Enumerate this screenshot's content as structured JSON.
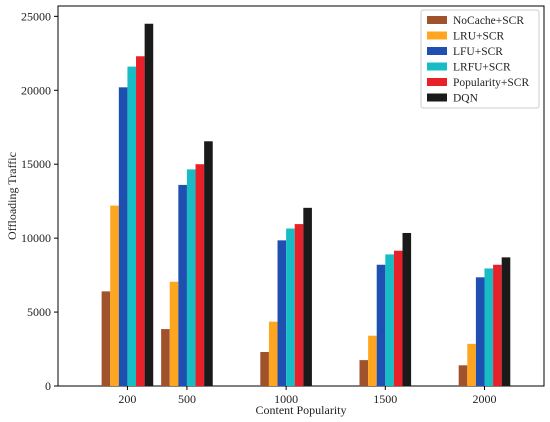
{
  "chart_data": {
    "type": "bar",
    "title": "",
    "xlabel": "Content Popularity",
    "ylabel": "Offloading Traffic",
    "categories": [
      "200",
      "500",
      "1000",
      "1500",
      "2000"
    ],
    "x_positions": [
      200,
      500,
      1000,
      1500,
      2000
    ],
    "xlim": [
      -150,
      2300
    ],
    "ylim": [
      0,
      25700
    ],
    "yticks": [
      0,
      5000,
      10000,
      15000,
      20000,
      25000
    ],
    "ytick_labels": [
      "0",
      "5000",
      "10000",
      "15000",
      "20000",
      "25000"
    ],
    "grid": false,
    "legend_position": "top-right",
    "series": [
      {
        "name": "NoCache+SCR",
        "color": "#a0522d",
        "values": [
          6400,
          3850,
          2300,
          1750,
          1400
        ]
      },
      {
        "name": "LRU+SCR",
        "color": "#ffa620",
        "values": [
          12200,
          7050,
          4350,
          3400,
          2850
        ]
      },
      {
        "name": "LFU+SCR",
        "color": "#1f4fb0",
        "values": [
          20200,
          13600,
          9850,
          8200,
          7350
        ]
      },
      {
        "name": "LRFU+SCR",
        "color": "#17bcc4",
        "values": [
          21600,
          14650,
          10650,
          8900,
          7950
        ]
      },
      {
        "name": "Popularity+SCR",
        "color": "#e8202a",
        "values": [
          22300,
          15000,
          10950,
          9150,
          8200
        ]
      },
      {
        "name": "DQN",
        "color": "#1a1a1a",
        "values": [
          24500,
          16550,
          12050,
          10350,
          8700
        ]
      }
    ]
  }
}
